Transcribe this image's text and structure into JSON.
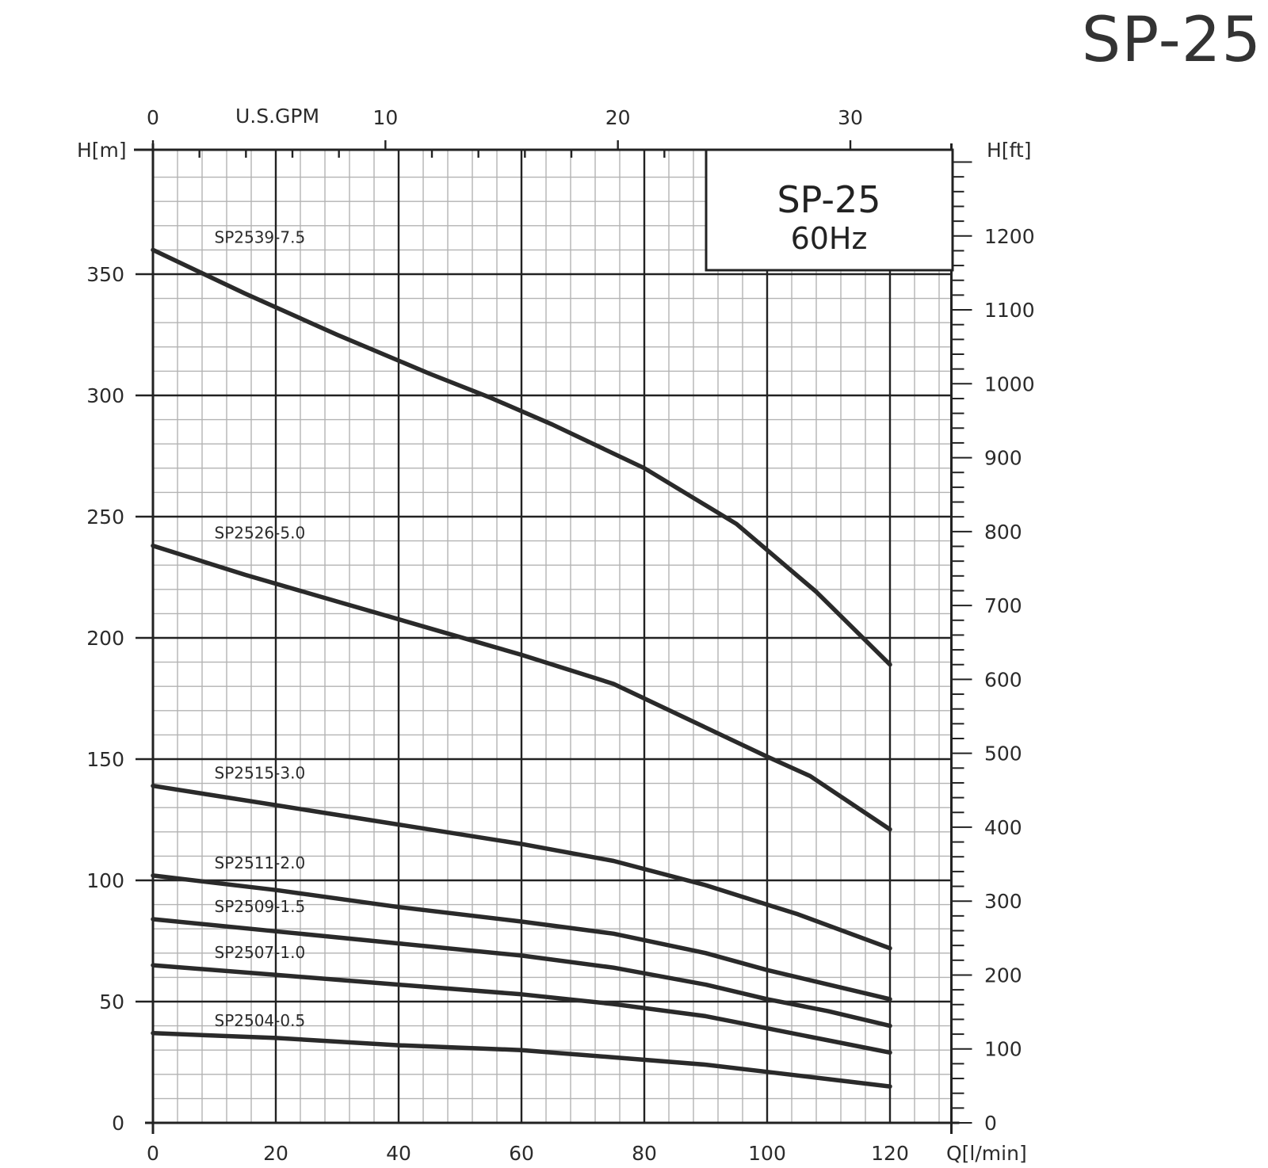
{
  "page": {
    "title": "SP-25"
  },
  "chart_data": {
    "type": "line",
    "title": "SP-25",
    "subtitle": "60Hz",
    "x_label": "Q[l/min]",
    "y_label_left": "H[m]",
    "y_label_right": "H[ft]",
    "x2_label": "U.S.GPM",
    "xlim": [
      0,
      130
    ],
    "ylim": [
      0,
      400
    ],
    "x_ticks": [
      "0",
      "20",
      "40",
      "60",
      "80",
      "100",
      "120"
    ],
    "y_ticks": [
      "0",
      "50",
      "100",
      "150",
      "200",
      "250",
      "300",
      "350"
    ],
    "y2_ticks": [
      "0",
      "100",
      "200",
      "300",
      "400",
      "500",
      "600",
      "700",
      "800",
      "900",
      "1000",
      "1100",
      "1200"
    ],
    "x2_ticks": [
      "0",
      "10",
      "20",
      "30"
    ],
    "grid": true,
    "series": [
      {
        "name": "SP2539-7.5",
        "x": [
          0,
          15,
          30,
          45,
          55,
          65,
          80,
          95,
          108,
          120
        ],
        "y": [
          360,
          342,
          325,
          309,
          299,
          288,
          270,
          247,
          219,
          189
        ]
      },
      {
        "name": "SP2526-5.0",
        "x": [
          0,
          15,
          30,
          45,
          60,
          75,
          90,
          100,
          107,
          120
        ],
        "y": [
          238,
          226,
          215,
          204,
          193,
          181,
          163,
          151,
          143,
          121
        ]
      },
      {
        "name": "SP2515-3.0",
        "x": [
          0,
          20,
          40,
          60,
          75,
          90,
          100,
          105,
          120
        ],
        "y": [
          139,
          131,
          123,
          115,
          108,
          98,
          90,
          86,
          72
        ]
      },
      {
        "name": "SP2511-2.0",
        "x": [
          0,
          20,
          40,
          60,
          75,
          90,
          100,
          110,
          120
        ],
        "y": [
          102,
          96,
          89,
          83,
          78,
          70,
          63,
          57,
          51
        ]
      },
      {
        "name": "SP2509-1.5",
        "x": [
          0,
          20,
          40,
          60,
          75,
          90,
          100,
          110,
          120
        ],
        "y": [
          84,
          79,
          74,
          69,
          64,
          57,
          51,
          46,
          40
        ]
      },
      {
        "name": "SP2507-1.0",
        "x": [
          0,
          20,
          40,
          60,
          75,
          90,
          100,
          110,
          120
        ],
        "y": [
          65,
          61,
          57,
          53,
          49,
          44,
          39,
          34,
          29
        ]
      },
      {
        "name": "SP2504-0.5",
        "x": [
          0,
          20,
          40,
          60,
          75,
          90,
          100,
          110,
          120
        ],
        "y": [
          37,
          35,
          32,
          30,
          27,
          24,
          21,
          18,
          15
        ]
      }
    ]
  }
}
